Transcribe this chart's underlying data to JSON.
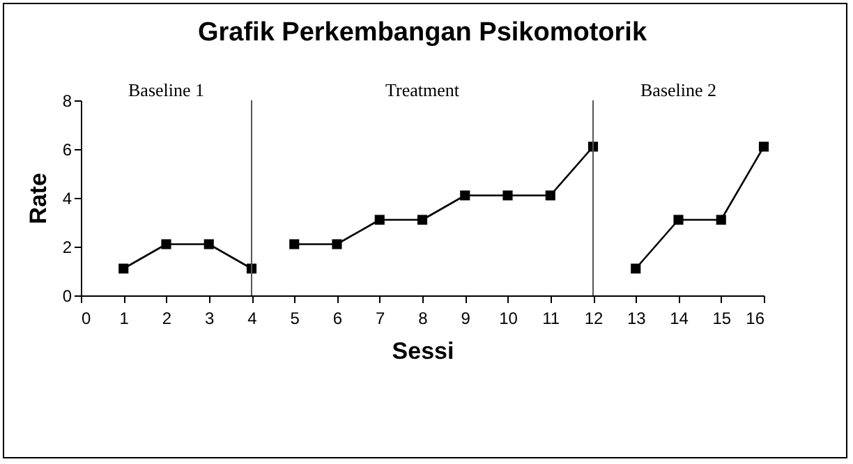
{
  "chart_data": {
    "type": "line",
    "title": "Grafik Perkembangan Psikomotorik",
    "xlabel": "Sessi",
    "ylabel": "Rate",
    "series": [
      {
        "color": "#000000",
        "x": [
          1,
          2,
          3,
          4
        ],
        "values": [
          1.1,
          2.1,
          2.1,
          1.1
        ]
      },
      {
        "color": "#000000",
        "x": [
          5,
          6,
          7,
          8,
          9,
          10,
          11,
          12
        ],
        "values": [
          2.1,
          2.1,
          3.1,
          3.1,
          4.1,
          4.1,
          4.1,
          6.1
        ]
      },
      {
        "color": "#000000",
        "x": [
          13,
          14,
          15,
          16
        ],
        "values": [
          1.1,
          3.1,
          3.1,
          6.1
        ]
      }
    ],
    "xlim": [
      0,
      16
    ],
    "xticks": [
      0,
      1,
      2,
      3,
      4,
      5,
      6,
      7,
      8,
      9,
      10,
      11,
      12,
      13,
      14,
      15,
      16
    ],
    "ylim": [
      0,
      8
    ],
    "yticks": [
      0,
      2,
      4,
      6,
      8
    ],
    "ref_lines": [
      {
        "axis": "x",
        "value": 4,
        "color": "#555555"
      },
      {
        "axis": "x",
        "value": 12,
        "color": "#555555"
      }
    ],
    "annotations": [
      "Baseline 1",
      "Treatment",
      "Baseline 2"
    ],
    "marker": "square",
    "line_style": "solid",
    "grid": false,
    "legend": false
  }
}
